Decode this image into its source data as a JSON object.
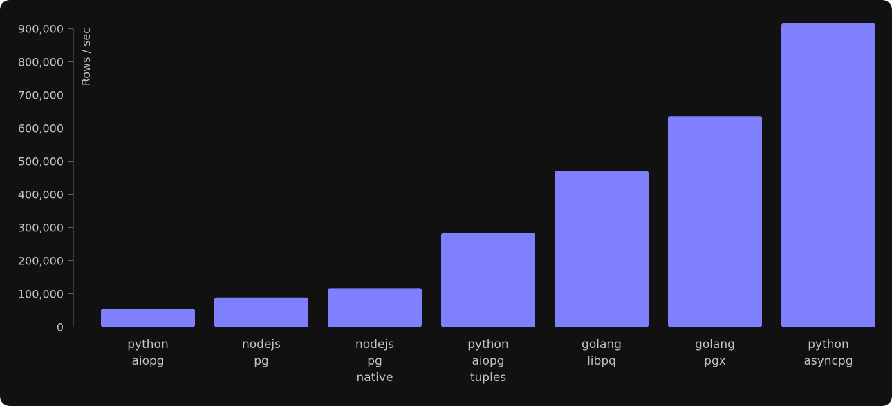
{
  "chart_data": {
    "type": "bar",
    "categories": [
      [
        "python",
        "aiopg"
      ],
      [
        "nodejs",
        "pg"
      ],
      [
        "nodejs",
        "pg",
        "native"
      ],
      [
        "python",
        "aiopg",
        "tuples"
      ],
      [
        "golang",
        "libpq"
      ],
      [
        "golang",
        "pgx"
      ],
      [
        "python",
        "asyncpg"
      ]
    ],
    "values": [
      55000,
      89000,
      117000,
      283000,
      471000,
      636000,
      916000
    ],
    "ylabel": "Rows / sec",
    "ylim": [
      0,
      900000
    ],
    "yticks": [
      0,
      100000,
      200000,
      300000,
      400000,
      500000,
      600000,
      700000,
      800000,
      900000
    ],
    "ytick_labels": [
      "0",
      "100,000",
      "200,000",
      "300,000",
      "400,000",
      "500,000",
      "600,000",
      "700,000",
      "800,000",
      "900,000"
    ],
    "grid": false,
    "colors": {
      "bar": "#8080ff",
      "background": "#111111",
      "axis": "#666666",
      "text": "#c4c4c4"
    }
  }
}
